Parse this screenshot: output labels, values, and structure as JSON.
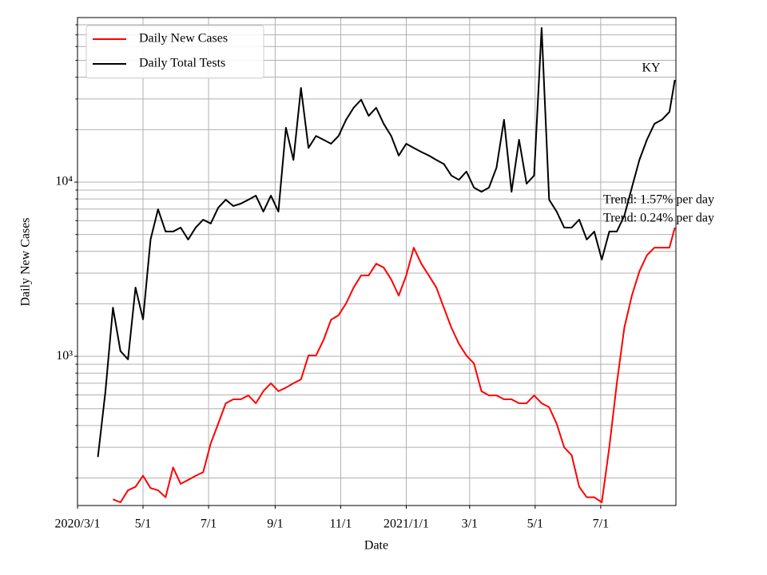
{
  "chart_data": {
    "type": "line",
    "yscale": "log",
    "grid": true,
    "legend": "upper left",
    "xlabel": "Date",
    "ylabel": "Daily New Cases",
    "annotations": [
      {
        "text": "KY"
      },
      {
        "text": "Trend: 1.57% per day"
      },
      {
        "text": "Trend: 0.24% per day"
      }
    ],
    "xlim": [
      "2020-03-01",
      "2021-09-09"
    ],
    "xticks": [
      {
        "value": "2020-03-01",
        "label": "2020/3/1"
      },
      {
        "value": "2020-05-01",
        "label": "5/1"
      },
      {
        "value": "2020-07-01",
        "label": "7/1"
      },
      {
        "value": "2020-09-01",
        "label": "9/1"
      },
      {
        "value": "2020-11-01",
        "label": "11/1"
      },
      {
        "value": "2021-01-01",
        "label": "2021/1/1"
      },
      {
        "value": "2021-03-01",
        "label": "3/1"
      },
      {
        "value": "2021-05-01",
        "label": "5/1"
      },
      {
        "value": "2021-07-01",
        "label": "7/1"
      }
    ],
    "ylim": [
      139,
      88000
    ],
    "yticks": [
      {
        "value": 1000,
        "label": "10³"
      },
      {
        "value": 10000,
        "label": "10⁴"
      }
    ],
    "minor_yticks": [
      200,
      300,
      400,
      500,
      600,
      700,
      800,
      900,
      2000,
      3000,
      4000,
      5000,
      6000,
      7000,
      8000,
      9000,
      20000,
      30000,
      40000,
      50000,
      60000,
      70000,
      80000
    ],
    "x": [
      "2020-03-20",
      "2020-03-27",
      "2020-04-03",
      "2020-04-10",
      "2020-04-17",
      "2020-04-24",
      "2020-05-01",
      "2020-05-08",
      "2020-05-15",
      "2020-05-22",
      "2020-05-29",
      "2020-06-05",
      "2020-06-12",
      "2020-06-19",
      "2020-06-26",
      "2020-07-03",
      "2020-07-10",
      "2020-07-17",
      "2020-07-24",
      "2020-07-31",
      "2020-08-07",
      "2020-08-14",
      "2020-08-21",
      "2020-08-28",
      "2020-09-04",
      "2020-09-11",
      "2020-09-18",
      "2020-09-25",
      "2020-10-02",
      "2020-10-09",
      "2020-10-16",
      "2020-10-23",
      "2020-10-30",
      "2020-11-06",
      "2020-11-13",
      "2020-11-20",
      "2020-11-27",
      "2020-12-04",
      "2020-12-11",
      "2020-12-18",
      "2020-12-25",
      "2021-01-01",
      "2021-01-08",
      "2021-01-15",
      "2021-01-22",
      "2021-01-29",
      "2021-02-05",
      "2021-02-12",
      "2021-02-19",
      "2021-02-26",
      "2021-03-05",
      "2021-03-12",
      "2021-03-19",
      "2021-03-26",
      "2021-04-02",
      "2021-04-09",
      "2021-04-16",
      "2021-04-23",
      "2021-04-30",
      "2021-05-07",
      "2021-05-14",
      "2021-05-21",
      "2021-05-28",
      "2021-06-04",
      "2021-06-11",
      "2021-06-18",
      "2021-06-25",
      "2021-07-02",
      "2021-07-09",
      "2021-07-16",
      "2021-07-23",
      "2021-07-30",
      "2021-08-06",
      "2021-08-13",
      "2021-08-20",
      "2021-08-27",
      "2021-09-03",
      "2021-09-08"
    ],
    "series": [
      {
        "name": "Daily New Cases",
        "color": "#ff0000",
        "values": [
          null,
          null,
          151,
          145,
          170,
          178,
          206,
          175,
          170,
          155,
          230,
          185,
          195,
          206,
          216,
          316,
          410,
          537,
          566,
          566,
          596,
          537,
          630,
          700,
          630,
          660,
          700,
          736,
          1010,
          1010,
          1240,
          1620,
          1720,
          2010,
          2480,
          2910,
          2910,
          3400,
          3230,
          2760,
          2230,
          2910,
          4200,
          3400,
          2910,
          2480,
          1900,
          1460,
          1180,
          1010,
          910,
          630,
          596,
          596,
          566,
          566,
          537,
          537,
          596,
          537,
          510,
          410,
          300,
          270,
          178,
          155,
          155,
          145,
          300,
          700,
          1460,
          2230,
          3070,
          3800,
          4200,
          4200,
          4200,
          5480
        ]
      },
      {
        "name": "Daily Total Tests",
        "color": "#000000",
        "values": [
          264,
          628,
          1900,
          1070,
          960,
          2480,
          1630,
          4680,
          6980,
          5200,
          5200,
          5480,
          4680,
          5480,
          6080,
          5780,
          7130,
          7920,
          7290,
          7520,
          7920,
          8360,
          6770,
          8360,
          6770,
          20500,
          13400,
          34700,
          15700,
          18400,
          17500,
          16600,
          18400,
          22800,
          26700,
          29700,
          24000,
          26700,
          21600,
          18400,
          14200,
          16600,
          15700,
          14900,
          14200,
          13400,
          12700,
          10900,
          10300,
          11500,
          9300,
          8800,
          9300,
          12100,
          22800,
          8800,
          17500,
          9790,
          10900,
          76700,
          7920,
          6770,
          5480,
          5480,
          6080,
          4680,
          5200,
          3590,
          5200,
          5200,
          6410,
          9300,
          13400,
          17500,
          21600,
          22800,
          25300,
          38600
        ]
      }
    ]
  }
}
